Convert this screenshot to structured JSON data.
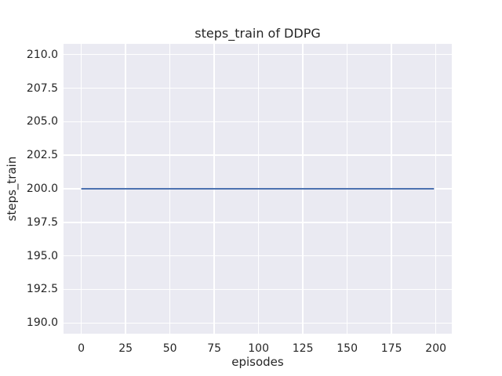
{
  "figure": {
    "background_color": "#ffffff",
    "axes_background_color": "#eaeaf2",
    "grid_color": "#ffffff",
    "text_color": "#262626",
    "style": "seaborn-darkgrid"
  },
  "chart_data": {
    "type": "line",
    "title": "steps_train of DDPG",
    "xlabel": "episodes",
    "ylabel": "steps_train",
    "xlim": [
      -10,
      209
    ],
    "ylim": [
      189.2,
      210.8
    ],
    "grid": true,
    "legend": false,
    "xticks": {
      "values": [
        0,
        25,
        50,
        75,
        100,
        125,
        150,
        175,
        200
      ],
      "labels": [
        "0",
        "25",
        "50",
        "75",
        "100",
        "125",
        "150",
        "175",
        "200"
      ]
    },
    "yticks": {
      "values": [
        190.0,
        192.5,
        195.0,
        197.5,
        200.0,
        202.5,
        205.0,
        207.5,
        210.0
      ],
      "labels": [
        "190.0",
        "192.5",
        "195.0",
        "197.5",
        "200.0",
        "202.5",
        "205.0",
        "207.5",
        "210.0"
      ]
    },
    "series": [
      {
        "name": "steps_train",
        "color": "#4c72b0",
        "line_width": 2,
        "x": [
          0,
          199
        ],
        "y": [
          200,
          200
        ],
        "description": "constant value 200 for every episode from 0 to 199"
      }
    ]
  }
}
